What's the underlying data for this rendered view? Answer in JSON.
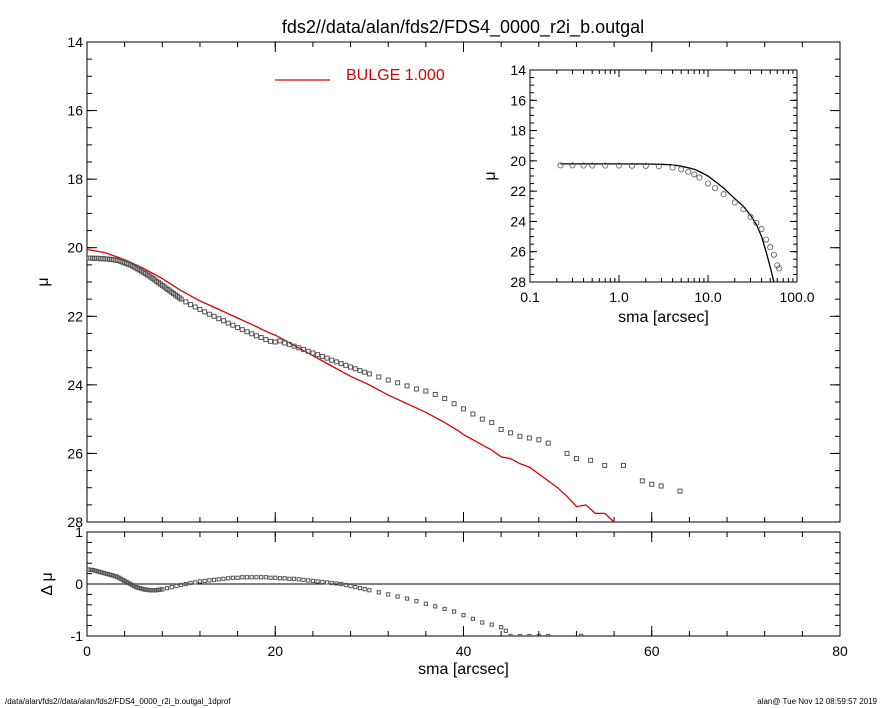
{
  "title": "fds2//data/alan/fds2/FDS4_0000_r2i_b.outgal",
  "footer": {
    "left": "/data/alan/fds2//data/alan/fds2/FDS4_0000_r2i_b.outgal_1dprof",
    "right": "alan@  Tue Nov 12 08:59:57 2019"
  },
  "colors": {
    "model": "#dd0000",
    "data": "#555555",
    "axes": "#000000"
  },
  "chart_data": [
    {
      "id": "main",
      "type": "scatter",
      "xlabel": "",
      "ylabel": "μ",
      "xlim": [
        0,
        80
      ],
      "ylim": [
        28,
        14
      ],
      "y_inverted": true,
      "xticks": [
        "0",
        "20",
        "40",
        "60",
        "80"
      ],
      "yticks": [
        "14",
        "16",
        "18",
        "20",
        "22",
        "24",
        "26",
        "28"
      ],
      "legend": {
        "label": "BULGE  1.000",
        "placement": "top-left"
      },
      "series": [
        {
          "name": "BULGE  1.000",
          "kind": "line",
          "x": [
            0,
            2,
            4,
            6,
            8,
            10,
            12,
            14,
            16,
            18,
            19.5,
            20,
            22,
            24,
            26,
            28,
            30,
            32,
            34,
            36,
            38,
            39.5,
            40,
            42,
            43,
            44,
            45,
            46,
            47,
            48,
            49,
            50,
            51,
            52,
            53,
            54,
            55,
            56,
            56.5
          ],
          "y": [
            20.05,
            20.15,
            20.35,
            20.6,
            20.9,
            21.25,
            21.55,
            21.8,
            22.05,
            22.3,
            22.5,
            22.55,
            22.85,
            23.15,
            23.45,
            23.75,
            24.0,
            24.3,
            24.55,
            24.8,
            25.1,
            25.35,
            25.45,
            25.75,
            25.9,
            26.1,
            26.15,
            26.3,
            26.4,
            26.6,
            26.8,
            27.0,
            27.25,
            27.55,
            27.5,
            27.75,
            27.75,
            28.0,
            28.15
          ]
        },
        {
          "name": "",
          "kind": "points",
          "x": [
            0.2,
            0.4,
            0.6,
            0.8,
            1.0,
            1.2,
            1.4,
            1.6,
            1.8,
            2.0,
            2.2,
            2.4,
            2.6,
            2.8,
            3.0,
            3.2,
            3.4,
            3.6,
            3.8,
            4.0,
            4.2,
            4.4,
            4.6,
            4.8,
            5.0,
            5.2,
            5.4,
            5.6,
            5.8,
            6.0,
            6.2,
            6.4,
            6.6,
            6.8,
            7.0,
            7.2,
            7.4,
            7.6,
            7.8,
            8.0,
            8.2,
            8.4,
            8.6,
            8.8,
            9.0,
            9.2,
            9.4,
            9.6,
            9.8,
            10.0,
            10.5,
            11.0,
            11.5,
            12.0,
            12.5,
            13.0,
            13.5,
            14.0,
            14.5,
            15.0,
            15.5,
            16.0,
            16.5,
            17.0,
            17.5,
            18.0,
            18.5,
            19.0,
            19.5,
            20.0,
            20.5,
            21.0,
            21.5,
            22.0,
            22.5,
            23.0,
            23.5,
            24.0,
            24.5,
            25.0,
            25.5,
            26.0,
            26.5,
            27.0,
            27.5,
            28.0,
            28.5,
            29.0,
            29.5,
            30.0,
            31.0,
            32.0,
            33.0,
            34.0,
            35.0,
            36.0,
            37.0,
            38.0,
            39.0,
            40.0,
            41.0,
            42.0,
            43.0,
            44.0,
            45.0,
            46.0,
            47.0,
            48.0,
            49.0,
            51.0,
            52.0,
            53.5,
            55.0,
            57.0,
            59.0,
            60.0,
            61.0,
            63.0
          ],
          "y": [
            20.3,
            20.3,
            20.31,
            20.31,
            20.31,
            20.31,
            20.32,
            20.32,
            20.32,
            20.33,
            20.33,
            20.34,
            20.34,
            20.35,
            20.36,
            20.37,
            20.38,
            20.4,
            20.42,
            20.44,
            20.46,
            20.48,
            20.5,
            20.53,
            20.56,
            20.59,
            20.62,
            20.65,
            20.68,
            20.72,
            20.75,
            20.79,
            20.82,
            20.86,
            20.9,
            20.94,
            20.98,
            21.02,
            21.06,
            21.1,
            21.14,
            21.18,
            21.22,
            21.26,
            21.3,
            21.34,
            21.38,
            21.42,
            21.46,
            21.5,
            21.58,
            21.66,
            21.73,
            21.8,
            21.87,
            21.94,
            22.0,
            22.07,
            22.13,
            22.2,
            22.26,
            22.33,
            22.39,
            22.45,
            22.51,
            22.57,
            22.62,
            22.68,
            22.73,
            22.75,
            22.72,
            22.78,
            22.82,
            22.87,
            22.92,
            22.97,
            23.02,
            23.07,
            23.12,
            23.17,
            23.22,
            23.28,
            23.33,
            23.38,
            23.43,
            23.48,
            23.53,
            23.58,
            23.63,
            23.68,
            23.77,
            23.86,
            23.94,
            24.03,
            24.12,
            24.18,
            24.28,
            24.4,
            24.55,
            24.7,
            24.85,
            25.0,
            25.1,
            25.3,
            25.4,
            25.5,
            25.55,
            25.6,
            25.7,
            26.0,
            26.15,
            26.2,
            26.35,
            26.35,
            26.8,
            26.9,
            26.95,
            27.1
          ]
        }
      ]
    },
    {
      "id": "residual",
      "type": "scatter",
      "xlabel": "sma [arcsec]",
      "ylabel": "Δ μ",
      "xlim": [
        0,
        80
      ],
      "ylim": [
        -1,
        1
      ],
      "xticks": [
        "0",
        "20",
        "40",
        "60",
        "80"
      ],
      "yticks": [
        "1",
        "0",
        "-1"
      ],
      "zero_line": true,
      "series": [
        {
          "name": "",
          "kind": "points",
          "x": [
            0.2,
            0.4,
            0.6,
            0.8,
            1.0,
            1.2,
            1.4,
            1.6,
            1.8,
            2.0,
            2.2,
            2.4,
            2.6,
            2.8,
            3.0,
            3.2,
            3.4,
            3.6,
            3.8,
            4.0,
            4.2,
            4.4,
            4.6,
            4.8,
            5.0,
            5.2,
            5.4,
            5.6,
            5.8,
            6.0,
            6.2,
            6.4,
            6.6,
            6.8,
            7.0,
            7.2,
            7.4,
            7.6,
            7.8,
            8.0,
            8.5,
            9.0,
            9.5,
            10.0,
            10.5,
            11.0,
            11.5,
            12.0,
            12.5,
            13.0,
            13.5,
            14.0,
            14.5,
            15.0,
            15.5,
            16.0,
            16.5,
            17.0,
            17.5,
            18.0,
            18.5,
            19.0,
            19.5,
            20.0,
            20.5,
            21.0,
            21.5,
            22.0,
            22.5,
            23.0,
            23.5,
            24.0,
            24.5,
            25.0,
            25.5,
            26.0,
            26.5,
            27.0,
            27.5,
            28.0,
            28.5,
            29.0,
            29.5,
            30.0,
            31.0,
            32.0,
            33.0,
            34.0,
            35.0,
            36.0,
            37.0,
            38.0,
            39.0,
            40.0,
            41.0,
            42.0,
            43.0,
            44.0,
            44.5,
            45.0,
            46.0,
            47.0,
            48.0,
            49.0,
            52.5
          ],
          "y": [
            0.28,
            0.27,
            0.27,
            0.26,
            0.25,
            0.24,
            0.23,
            0.22,
            0.21,
            0.2,
            0.19,
            0.18,
            0.17,
            0.16,
            0.15,
            0.14,
            0.12,
            0.1,
            0.08,
            0.06,
            0.04,
            0.02,
            0.0,
            -0.02,
            -0.04,
            -0.06,
            -0.07,
            -0.08,
            -0.09,
            -0.1,
            -0.11,
            -0.11,
            -0.12,
            -0.12,
            -0.12,
            -0.12,
            -0.12,
            -0.11,
            -0.11,
            -0.1,
            -0.08,
            -0.06,
            -0.04,
            -0.02,
            0.0,
            0.02,
            0.03,
            0.05,
            0.06,
            0.07,
            0.08,
            0.09,
            0.1,
            0.11,
            0.12,
            0.12,
            0.13,
            0.13,
            0.13,
            0.13,
            0.13,
            0.13,
            0.12,
            0.12,
            0.11,
            0.11,
            0.1,
            0.1,
            0.09,
            0.08,
            0.07,
            0.06,
            0.05,
            0.04,
            0.03,
            0.02,
            0.01,
            0.0,
            -0.02,
            -0.04,
            -0.06,
            -0.08,
            -0.1,
            -0.12,
            -0.16,
            -0.2,
            -0.24,
            -0.28,
            -0.33,
            -0.38,
            -0.43,
            -0.48,
            -0.53,
            -0.6,
            -0.67,
            -0.74,
            -0.78,
            -0.83,
            -0.9,
            -1.0,
            -1.0,
            -1.0,
            -1.0,
            -1.0,
            -1.0
          ]
        }
      ]
    },
    {
      "id": "inset",
      "type": "line",
      "xlabel": "sma [arcsec]",
      "ylabel": "μ",
      "x_scale": "log",
      "xlim": [
        0.1,
        100
      ],
      "ylim": [
        28,
        14
      ],
      "y_inverted": true,
      "xticks": [
        "0.1",
        "1.0",
        "10.0",
        "100.0"
      ],
      "yticks": [
        "14",
        "16",
        "18",
        "20",
        "22",
        "24",
        "26",
        "28"
      ],
      "series": [
        {
          "name": "",
          "kind": "line",
          "x": [
            0.22,
            0.5,
            1.0,
            2.0,
            3.0,
            4.0,
            5.0,
            6.0,
            7.0,
            8.0,
            10.0,
            12.0,
            15.0,
            20.0,
            25.0,
            30.0,
            35.0,
            40.0,
            45.0,
            50.0,
            55.0
          ],
          "y": [
            20.2,
            20.2,
            20.2,
            20.21,
            20.23,
            20.27,
            20.35,
            20.45,
            20.55,
            20.7,
            21.0,
            21.35,
            21.8,
            22.5,
            23.0,
            23.6,
            24.2,
            25.0,
            26.0,
            27.0,
            28.0
          ]
        },
        {
          "name": "",
          "kind": "points",
          "x": [
            0.22,
            0.3,
            0.4,
            0.5,
            0.7,
            1.0,
            1.4,
            2.0,
            2.8,
            4.0,
            5.0,
            6.0,
            7.0,
            8.0,
            10.0,
            12.0,
            15.0,
            20.0,
            25.0,
            30.0,
            35.0,
            40.0,
            45.0,
            50.0,
            55.0,
            60.0,
            63.0
          ],
          "y": [
            20.3,
            20.3,
            20.31,
            20.31,
            20.31,
            20.31,
            20.32,
            20.33,
            20.36,
            20.44,
            20.56,
            20.72,
            20.9,
            21.1,
            21.5,
            21.8,
            22.2,
            22.75,
            23.2,
            23.7,
            24.1,
            24.5,
            25.2,
            25.7,
            26.2,
            26.9,
            27.1
          ]
        }
      ]
    }
  ]
}
